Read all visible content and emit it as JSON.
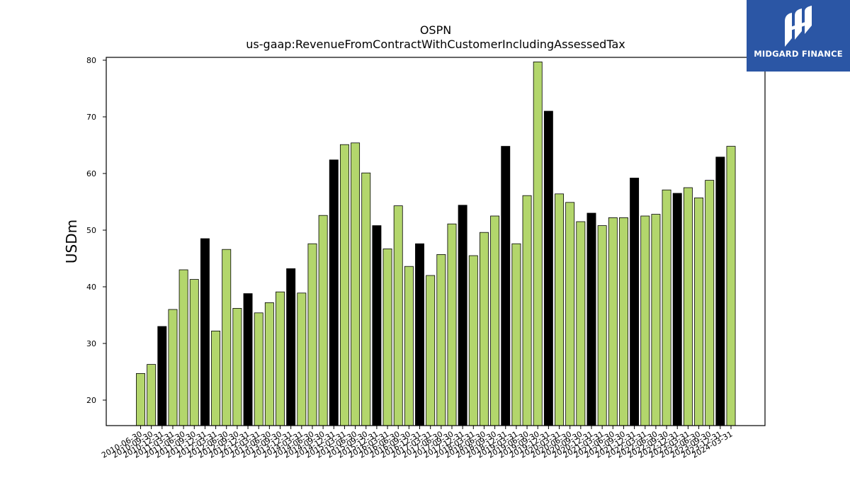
{
  "logo": {
    "text": "MIDGARD FINANCE",
    "icon": "midgard-logo-icon",
    "background": "#2b56a5"
  },
  "chart_data": {
    "type": "bar",
    "title": "OSPN",
    "subtitle": "us-gaap:RevenueFromContractWithCustomerIncludingAssessedTax",
    "xlabel": "",
    "ylabel": "USDm",
    "ylim": [
      15.5,
      80.5
    ],
    "yticks": [
      20,
      30,
      40,
      50,
      60,
      70,
      80
    ],
    "grid": false,
    "colors": {
      "quarter": "#b3d66c",
      "fiscal_q4": "#000000",
      "edge": "#000000"
    },
    "categories": [
      "2010-06-30",
      "2010-09-30",
      "2010-12-31",
      "2011-03-31",
      "2011-06-30",
      "2011-09-30",
      "2011-12-31",
      "2012-03-31",
      "2012-06-30",
      "2012-09-30",
      "2012-12-31",
      "2013-03-31",
      "2013-06-30",
      "2013-09-30",
      "2013-12-31",
      "2014-03-31",
      "2014-06-30",
      "2014-09-30",
      "2014-12-31",
      "2015-03-31",
      "2015-06-30",
      "2015-09-30",
      "2015-12-31",
      "2016-03-31",
      "2016-06-30",
      "2016-09-30",
      "2016-12-31",
      "2017-03-31",
      "2017-06-30",
      "2017-09-30",
      "2017-12-31",
      "2018-03-31",
      "2018-06-30",
      "2018-09-30",
      "2018-12-31",
      "2019-03-31",
      "2019-06-30",
      "2019-09-30",
      "2019-12-31",
      "2020-03-31",
      "2020-06-30",
      "2020-09-30",
      "2020-12-31",
      "2021-03-31",
      "2021-06-30",
      "2021-09-30",
      "2021-12-31",
      "2022-03-31",
      "2022-06-30",
      "2022-09-30",
      "2022-12-31",
      "2023-03-31",
      "2023-06-30",
      "2023-09-30",
      "2023-12-31",
      "2024-03-31"
    ],
    "values": [
      24.7,
      26.3,
      33.0,
      36.0,
      43.0,
      41.3,
      48.5,
      32.2,
      46.6,
      36.2,
      38.8,
      35.4,
      37.2,
      39.1,
      43.2,
      38.9,
      47.6,
      52.6,
      62.4,
      65.1,
      65.4,
      60.1,
      50.8,
      46.7,
      54.3,
      43.6,
      47.6,
      42.0,
      45.7,
      51.1,
      54.4,
      45.5,
      49.6,
      52.5,
      64.8,
      47.6,
      56.1,
      79.7,
      71.0,
      56.4,
      54.9,
      51.5,
      53.0,
      50.8,
      52.2,
      52.2,
      59.2,
      52.5,
      52.8,
      57.1,
      56.5,
      57.5,
      55.7,
      58.8,
      62.9,
      64.8
    ]
  }
}
